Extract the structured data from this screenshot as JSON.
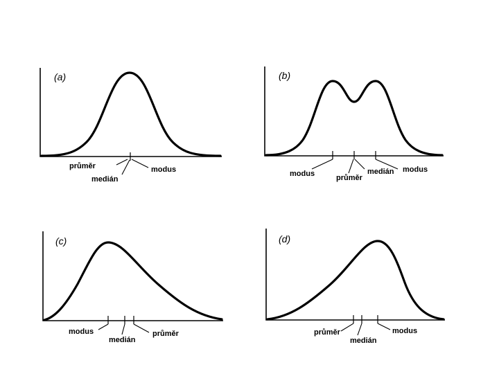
{
  "panels": [
    {
      "id": "a",
      "label": "(a)",
      "terms": {
        "mean": "průměr",
        "median": "medián",
        "mode": "modus"
      }
    },
    {
      "id": "b",
      "label": "(b)",
      "terms": {
        "mode_left": "modus",
        "mean": "průměr",
        "median": "medián",
        "mode_right": "modus"
      }
    },
    {
      "id": "c",
      "label": "(c)",
      "terms": {
        "mode": "modus",
        "median": "medián",
        "mean": "průměr"
      }
    },
    {
      "id": "d",
      "label": "(d)",
      "terms": {
        "mean": "průměr",
        "median": "medián",
        "mode": "modus"
      }
    }
  ]
}
